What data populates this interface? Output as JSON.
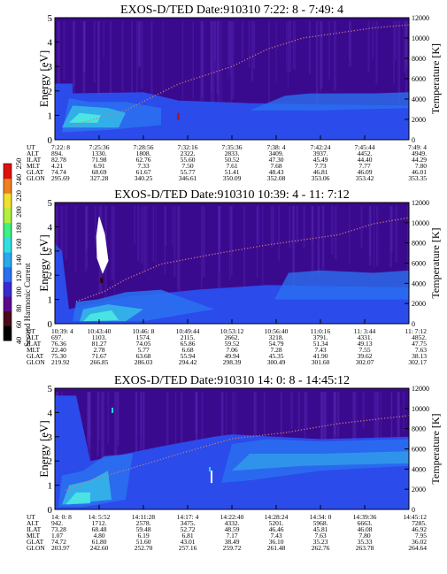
{
  "colors": {
    "background": "#3a0a8e",
    "band_blue": "#2a4ff0",
    "band_light": "#35b6e8",
    "band_cyan": "#4ef0e0",
    "ridge": "#c77a7a",
    "white_spot": "#ffffff"
  },
  "colorbar": {
    "label": "Second Harmonic Current",
    "ticks": [
      "40",
      "60",
      "80",
      "100",
      "120",
      "140",
      "160",
      "180",
      "200",
      "220",
      "240",
      "250"
    ],
    "colors": [
      "#000000",
      "#4a0a1a",
      "#5a0a8a",
      "#3a2ad0",
      "#2a6ff0",
      "#2aa8f0",
      "#30e0e0",
      "#40f080",
      "#b0f040",
      "#f0e030",
      "#f08020",
      "#e01010"
    ]
  },
  "row_labels": [
    "UT",
    "ALT",
    "ILAT",
    "MLT",
    "GLAT",
    "GLON"
  ],
  "chart_data": [
    {
      "type": "heatmap",
      "title": "EXOS-D/TED   Date:910310  7:22: 8 - 7:49: 4",
      "ylabel": "Energy [eV]",
      "y2label": "Temperature [K]",
      "ylim": [
        0,
        5
      ],
      "yticks": [
        "0",
        "1",
        "2",
        "3",
        "4",
        "5"
      ],
      "y2lim": [
        0,
        12000
      ],
      "y2ticks": [
        "0",
        "2000",
        "4000",
        "6000",
        "8000",
        "10000",
        "12000"
      ],
      "columns": [
        [
          "7:22: 8",
          "894.",
          "82.78",
          "4.21",
          "74.74",
          "295.69"
        ],
        [
          "7:25:36",
          "1330.",
          "71.98",
          "6.91",
          "68.69",
          "327.28"
        ],
        [
          "7:28:56",
          "1808.",
          "62.76",
          "7.33",
          "61.67",
          "340.25"
        ],
        [
          "7:32:16",
          "2322.",
          "55.60",
          "7.50",
          "55.77",
          "346.61"
        ],
        [
          "7:35:36",
          "2833.",
          "50.52",
          "7.61",
          "51.41",
          "350.09"
        ],
        [
          "7:38: 4",
          "3409.",
          "47.30",
          "7.68",
          "48.43",
          "352.08"
        ],
        [
          "7:42:24",
          "3937.",
          "45.49",
          "7.73",
          "46.81",
          "353.06"
        ],
        [
          "7:45:44",
          "4452.",
          "44.40",
          "7.77",
          "46.09",
          "353.42"
        ],
        [
          "7:49: 4",
          "4949.",
          "44.29",
          "7.80",
          "46.01",
          "353.35"
        ]
      ]
    },
    {
      "type": "heatmap",
      "title": "EXOS-D/TED   Date:910310  10:39: 4 - 11: 7:12",
      "ylabel": "Energy [eV]",
      "y2label": "Temperature [K]",
      "ylim": [
        0,
        5
      ],
      "yticks": [
        "0",
        "1",
        "2",
        "3",
        "4",
        "5"
      ],
      "y2lim": [
        0,
        12000
      ],
      "y2ticks": [
        "0",
        "2000",
        "4000",
        "6000",
        "8000",
        "10000",
        "12000"
      ],
      "columns": [
        [
          "10:39: 4",
          "697.",
          "76.36",
          "22.40",
          "75.30",
          "219.92"
        ],
        [
          "10:43:40",
          "1103.",
          "81.27",
          "2.78",
          "71.67",
          "266.85"
        ],
        [
          "10:46: 8",
          "1574.",
          "74.05",
          "5.77",
          "63.68",
          "286.03"
        ],
        [
          "10:49:44",
          "2115.",
          "65.86",
          "6.68",
          "55.94",
          "294.42"
        ],
        [
          "10:53:12",
          "2662.",
          "59.52",
          "7.06",
          "49.94",
          "298.39"
        ],
        [
          "10:56:40",
          "3218.",
          "54.79",
          "7.28",
          "45.35",
          "300.49"
        ],
        [
          "11:0:16",
          "3791.",
          "51.34",
          "7.43",
          "41.90",
          "301.60"
        ],
        [
          "11: 3:44",
          "4331.",
          "49.13",
          "7.55",
          "39.62",
          "302.07"
        ],
        [
          "11: 7:12",
          "4852.",
          "47.75",
          "7.63",
          "38.13",
          "302.17"
        ]
      ]
    },
    {
      "type": "heatmap",
      "title": "EXOS-D/TED   Date:910310  14: 0: 8 - 14:45:12",
      "ylabel": "Energy [eV]",
      "y2label": "Temperature [K]",
      "ylim": [
        0,
        5
      ],
      "yticks": [
        "0",
        "1",
        "2",
        "3",
        "4",
        "5"
      ],
      "y2lim": [
        0,
        12000
      ],
      "y2ticks": [
        "0",
        "2000",
        "4000",
        "6000",
        "8000",
        "10000",
        "12000"
      ],
      "columns": [
        [
          "14: 0: 8",
          "942.",
          "73.28",
          "1.07",
          "74.72",
          "203.97"
        ],
        [
          "14: 5:52",
          "1712.",
          "68.48",
          "4.80",
          "61.80",
          "242.60"
        ],
        [
          "14:11:28",
          "2578.",
          "59.48",
          "6.19",
          "51.60",
          "252.70"
        ],
        [
          "14:17: 4",
          "3475.",
          "52.72",
          "6.81",
          "43.01",
          "257.16"
        ],
        [
          "14:22:40",
          "4332.",
          "48.59",
          "7.17",
          "38.49",
          "259.72"
        ],
        [
          "14:28:24",
          "5201.",
          "46.46",
          "7.43",
          "36.10",
          "261.48"
        ],
        [
          "14:34: 0",
          "5968.",
          "45.81",
          "7.63",
          "35.23",
          "262.76"
        ],
        [
          "14:39:36",
          "6663.",
          "46.08",
          "7.80",
          "35.33",
          "263.78"
        ],
        [
          "14:45:12",
          "7285.",
          "46.92",
          "7.95",
          "36.02",
          "264.64"
        ]
      ]
    }
  ]
}
